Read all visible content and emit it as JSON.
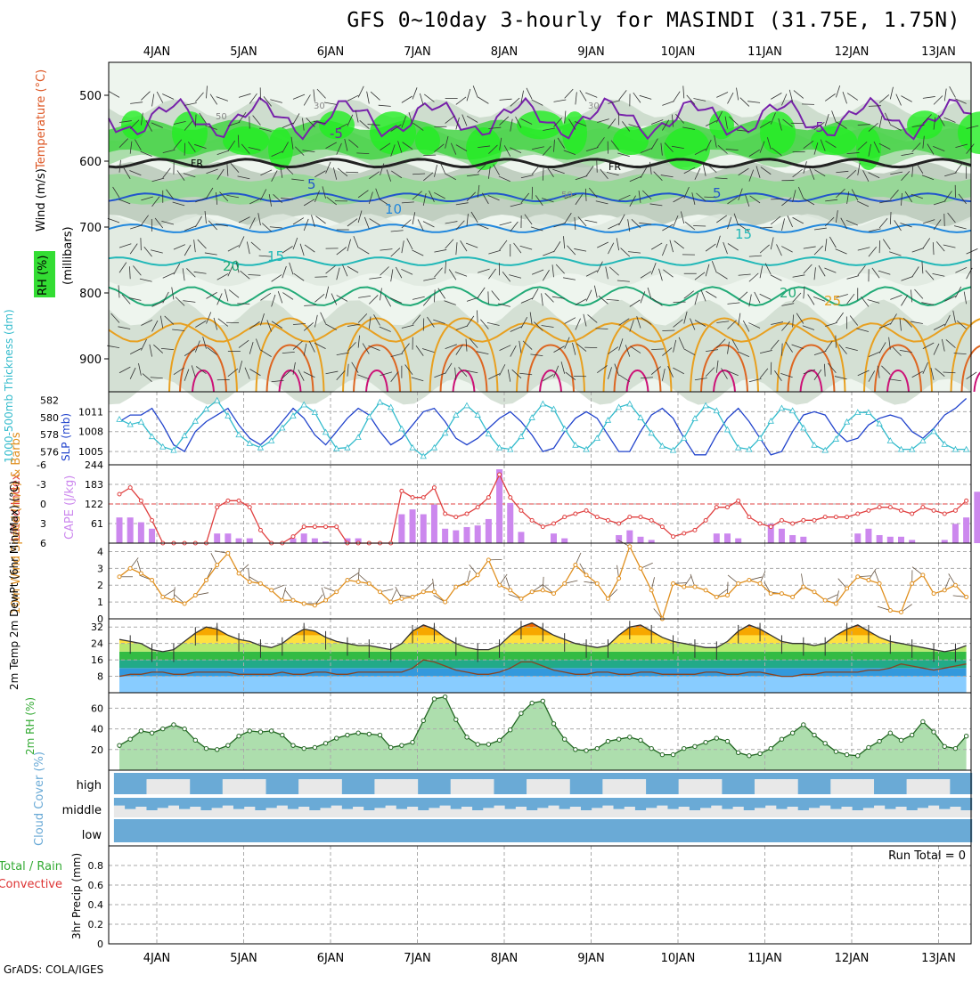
{
  "title": "GFS 0~10day 3-hourly for MASINDI (31.75E, 1.75N)",
  "credit": "GrADS: COLA/IGES",
  "days": [
    "4JAN",
    "5JAN",
    "6JAN",
    "7JAN",
    "8JAN",
    "9JAN",
    "10JAN",
    "11JAN",
    "12JAN",
    "13JAN"
  ],
  "colors": {
    "rh_fill": "#33dd33",
    "cape": "#cc88ee",
    "lifted": "#e04040",
    "slp": "#2244cc",
    "thickness": "#33bbcc",
    "wind": "#e09020",
    "rh2m": "#33aa33",
    "cloud": "#6aaad6",
    "temp_band": [
      "#cc2200",
      "#ee6600",
      "#f7a800",
      "#ffe040",
      "#b8e870",
      "#33bb44",
      "#22aa88",
      "#3399dd",
      "#88ccff"
    ]
  },
  "chart_data": [
    {
      "type": "heatmap",
      "name": "upper-air cross-section",
      "ylabel": "(millibars)",
      "labels": {
        "wind": "Wind (m/s)",
        "temperature": "Temperature (°C)",
        "rh": "RH (%)",
        "freezing": "FR"
      },
      "yticks": [
        500,
        600,
        700,
        800,
        900
      ],
      "ylim": [
        450,
        950
      ],
      "contours": {
        "temp_levels": [
          -5,
          0,
          5,
          10,
          15,
          20,
          25
        ],
        "rh_labels": [
          30,
          50
        ]
      }
    },
    {
      "type": "line",
      "name": "thickness and SLP",
      "ylabel_left": "1000-500mb Thickness (dm)",
      "ylabel_right": "SLP (mb)",
      "yticks_left": [
        576,
        578,
        580,
        582
      ],
      "yticks_right": [
        1005,
        1008,
        1011
      ],
      "series": [
        {
          "name": "SLP",
          "values": [
            1009.5,
            1010.5,
            1010.5,
            1011.5,
            1009,
            1006,
            1005,
            1008,
            1009.5,
            1010.5,
            1011.5,
            1009,
            1007,
            1006,
            1007.5,
            1009.5,
            1011.5,
            1010,
            1007.5,
            1006,
            1008,
            1010,
            1011.5,
            1010.5,
            1008,
            1006,
            1007,
            1009,
            1011,
            1011.5,
            1009.5,
            1007,
            1006,
            1007,
            1008.5,
            1010,
            1011,
            1009.5,
            1007.5,
            1005,
            1005.5,
            1008,
            1010,
            1011,
            1010,
            1007.5,
            1005,
            1005,
            1008,
            1010.5,
            1011.5,
            1010,
            1007,
            1004.5,
            1004.5,
            1007.5,
            1010,
            1011.5,
            1009.5,
            1007,
            1004.5,
            1005,
            1008,
            1010.5,
            1011,
            1010.5,
            1008,
            1006.5,
            1007,
            1009,
            1010,
            1010.5,
            1010,
            1008,
            1007,
            1008.5,
            1010.5,
            1011.5,
            1013
          ]
        },
        {
          "name": "Thickness",
          "values": [
            579.8,
            579.2,
            579.5,
            577.8,
            576.6,
            576.2,
            577.9,
            579.6,
            581,
            582,
            580.2,
            578,
            577,
            576.5,
            577.3,
            578.8,
            580.2,
            581.5,
            580.6,
            578.3,
            576.4,
            576.5,
            577.7,
            580.1,
            581.8,
            581.2,
            578.7,
            576.5,
            575.5,
            576.5,
            578.2,
            580.3,
            581.4,
            580.3,
            578.1,
            576.5,
            576.3,
            577.8,
            580,
            581.6,
            581,
            578.7,
            576.8,
            576.3,
            577.6,
            579.7,
            581.2,
            581.6,
            580,
            578.2,
            576.7,
            576.2,
            577.6,
            579.9,
            581.4,
            580.8,
            578.6,
            576.5,
            576.3,
            577.6,
            579.6,
            581.1,
            580.8,
            578.8,
            576.8,
            576.2,
            577.5,
            579.5,
            580.6,
            580.6,
            579.3,
            577.3,
            576.3,
            576.3,
            577.3,
            578.4,
            576.9,
            576.3,
            576.3
          ]
        }
      ]
    },
    {
      "type": "bar",
      "name": "CAPE and Lifted Index",
      "ylabel_left": "Lifted Index",
      "ylabel_right": "CAPE (J/kg)",
      "yticks_left": [
        -6,
        -3,
        0,
        3,
        6
      ],
      "yticks_right": [
        61,
        122,
        183,
        244
      ],
      "series": [
        {
          "name": "CAPE",
          "values": [
            80,
            80,
            65,
            45,
            0,
            0,
            0,
            0,
            0,
            30,
            30,
            15,
            15,
            0,
            0,
            0,
            15,
            30,
            15,
            5,
            0,
            15,
            15,
            0,
            0,
            0,
            90,
            105,
            90,
            120,
            45,
            40,
            50,
            55,
            75,
            230,
            125,
            35,
            0,
            0,
            30,
            15,
            0,
            0,
            0,
            0,
            25,
            40,
            20,
            10,
            0,
            0,
            0,
            0,
            0,
            30,
            30,
            15,
            0,
            0,
            60,
            45,
            25,
            20,
            0,
            0,
            0,
            0,
            30,
            45,
            25,
            20,
            20,
            10,
            0,
            0,
            10,
            60,
            80,
            160
          ]
        },
        {
          "name": "Lifted Index",
          "values": [
            -1.5,
            -2.5,
            -0.5,
            2.5,
            6,
            6,
            6,
            6,
            6,
            0.5,
            -0.5,
            -0.5,
            0.5,
            4,
            6,
            6,
            5,
            3.5,
            3.5,
            3.5,
            3.5,
            6,
            6,
            6,
            6,
            6,
            -2,
            -1,
            -1,
            -2.5,
            1.5,
            2,
            1.5,
            0.5,
            -1,
            -4.5,
            -1,
            1,
            2.5,
            3.5,
            3,
            2,
            1.5,
            1,
            2,
            2.5,
            3,
            2,
            2,
            2.5,
            3.5,
            5,
            4.5,
            4,
            2.5,
            0.5,
            0.5,
            -0.5,
            2,
            3,
            3.5,
            2.5,
            3,
            2.5,
            2.5,
            2,
            2,
            2,
            1.5,
            1,
            0.5,
            0.5,
            1,
            1.5,
            0.5,
            1,
            1.5,
            1,
            -0.5
          ]
        }
      ]
    },
    {
      "type": "line",
      "name": "10m wind",
      "ylabel": "10m Wind Speed (m/s) & Barbs",
      "yticks": [
        0,
        1,
        2,
        3,
        4
      ],
      "ylim": [
        0,
        4.5
      ],
      "values": [
        2.5,
        3,
        2.7,
        2.3,
        1.3,
        1.1,
        0.9,
        1.4,
        2.3,
        3.2,
        3.9,
        2.7,
        2.2,
        2.1,
        1.7,
        1.1,
        1.1,
        0.9,
        0.8,
        1.1,
        1.6,
        2.3,
        2.2,
        2.1,
        1.6,
        1,
        1.2,
        1.3,
        1.6,
        1.6,
        1,
        1.9,
        2.1,
        2.6,
        3.5,
        2,
        1.7,
        1.2,
        1.6,
        1.7,
        1.5,
        2.1,
        3.2,
        2.6,
        2.1,
        1.2,
        2.4,
        4.3,
        3,
        1.7,
        0,
        2.1,
        1.9,
        1.9,
        1.7,
        1.3,
        1.4,
        2.1,
        2.3,
        2.1,
        1.5,
        1.5,
        1.3,
        1.9,
        1.6,
        1.1,
        0.9,
        1.8,
        2.5,
        2.3,
        2.1,
        0.5,
        0.4,
        2.1,
        2.6,
        1.5,
        1.7,
        2,
        1.3
      ]
    },
    {
      "type": "line",
      "name": "2m temperature and dew point",
      "ylabel": "2m Temp 2m DewPt (6hr Min/Max) (°C)",
      "yticks": [
        8,
        16,
        24,
        32
      ],
      "ylim": [
        0,
        36
      ],
      "series": [
        {
          "name": "2m Temp",
          "values": [
            26,
            25,
            24,
            21,
            20,
            21,
            25,
            29,
            32,
            31,
            28,
            26,
            25,
            23,
            22,
            24,
            28,
            31,
            30,
            27,
            25,
            24,
            23,
            23,
            22,
            21,
            24,
            30,
            33,
            31,
            27,
            24,
            22,
            21,
            21,
            23,
            28,
            32,
            34,
            31,
            28,
            26,
            24,
            23,
            22,
            23,
            28,
            32,
            33,
            30,
            27,
            25,
            24,
            23,
            22,
            22,
            25,
            30,
            33,
            31,
            28,
            25,
            24,
            24,
            23,
            24,
            28,
            31,
            33,
            30,
            27,
            25,
            24,
            23,
            22,
            21,
            20,
            21,
            23
          ]
        },
        {
          "name": "2m DewPt",
          "values": [
            8,
            9,
            9,
            10,
            10,
            9,
            9,
            10,
            10,
            10,
            10,
            9,
            9,
            9,
            9,
            10,
            9,
            9,
            10,
            10,
            9,
            9,
            10,
            10,
            10,
            10,
            10,
            12,
            16,
            15,
            13,
            11,
            10,
            9,
            9,
            10,
            12,
            15,
            15,
            13,
            11,
            10,
            9,
            9,
            10,
            10,
            9,
            9,
            10,
            10,
            9,
            9,
            9,
            9,
            10,
            10,
            9,
            9,
            10,
            10,
            9,
            8,
            8,
            9,
            9,
            10,
            10,
            10,
            10,
            11,
            11,
            12,
            14,
            13,
            12,
            11,
            12,
            13,
            14
          ]
        }
      ]
    },
    {
      "type": "area",
      "name": "2m RH",
      "ylabel": "2m RH (%)",
      "yticks": [
        20,
        40,
        60
      ],
      "ylim": [
        0,
        75
      ],
      "values": [
        24,
        30,
        38,
        36,
        40,
        44,
        40,
        29,
        21,
        20,
        24,
        33,
        38,
        37,
        38,
        34,
        24,
        21,
        22,
        26,
        31,
        34,
        36,
        35,
        34,
        22,
        24,
        27,
        48,
        69,
        71,
        49,
        32,
        25,
        25,
        29,
        39,
        55,
        65,
        67,
        45,
        30,
        20,
        19,
        21,
        28,
        30,
        32,
        29,
        21,
        15,
        15,
        21,
        23,
        27,
        31,
        28,
        17,
        14,
        16,
        21,
        30,
        36,
        44,
        34,
        26,
        18,
        15,
        14,
        22,
        28,
        36,
        29,
        34,
        47,
        37,
        23,
        21,
        33
      ]
    },
    {
      "type": "table",
      "name": "cloud cover",
      "ylabel": "Cloud Cover (%)",
      "levels": [
        "high",
        "middle",
        "low"
      ]
    },
    {
      "type": "bar",
      "name": "3hr precipitation",
      "ylabel": "3hr Precip (mm)",
      "legend": [
        "Total / Rain",
        "Convective"
      ],
      "annotation": "Run Total = 0",
      "yticks": [
        0,
        0.2,
        0.4,
        0.6,
        0.8
      ],
      "ylim": [
        0,
        1
      ],
      "values": []
    }
  ]
}
